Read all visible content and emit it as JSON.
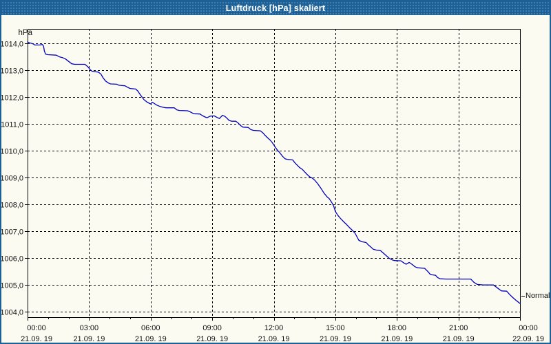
{
  "window": {
    "title": "Luftdruck [hPa] skaliert"
  },
  "colors": {
    "titlebar": "#1d6095",
    "window_border": "#1d6095",
    "background": "#fbfbf2",
    "grid": "#000000",
    "axis": "#000000",
    "line": "#0000bd",
    "label_text": "#111111",
    "title_text": "#ffffff"
  },
  "chart_data": {
    "type": "line",
    "title": "Luftdruck [hPa] skaliert",
    "xlabel": "",
    "ylabel": "hPa",
    "series_end_label": "Normal",
    "grid": "dashed",
    "legend": "none",
    "xlim": [
      0,
      24
    ],
    "ylim": [
      1003.8,
      1014.54
    ],
    "y_ticks": [
      {
        "value": 1014,
        "label": "1014,0"
      },
      {
        "value": 1013,
        "label": "1013,0"
      },
      {
        "value": 1012,
        "label": "1012,0"
      },
      {
        "value": 1011,
        "label": "1011,0"
      },
      {
        "value": 1010,
        "label": "1010,0"
      },
      {
        "value": 1009,
        "label": "1009,0"
      },
      {
        "value": 1008,
        "label": "1008,0"
      },
      {
        "value": 1007,
        "label": "1007,0"
      },
      {
        "value": 1006,
        "label": "1006,0"
      },
      {
        "value": 1005,
        "label": "1005,0"
      },
      {
        "value": 1004,
        "label": "1004,0"
      }
    ],
    "x_ticks": [
      {
        "hours": 0,
        "time": "00:00",
        "date": "21.09. 19"
      },
      {
        "hours": 3,
        "time": "03:00",
        "date": "21.09. 19"
      },
      {
        "hours": 6,
        "time": "06:00",
        "date": "21.09. 19"
      },
      {
        "hours": 9,
        "time": "09:00",
        "date": "21.09. 19"
      },
      {
        "hours": 12,
        "time": "12:00",
        "date": "21.09. 19"
      },
      {
        "hours": 15,
        "time": "15:00",
        "date": "21.09. 19"
      },
      {
        "hours": 18,
        "time": "18:00",
        "date": "21.09. 19"
      },
      {
        "hours": 21,
        "time": "21:00",
        "date": "21.09. 19"
      },
      {
        "hours": 24,
        "time": "00:00",
        "date": "22.09. 19"
      }
    ],
    "minor_x_tick_hours": 1,
    "series": [
      {
        "name": "Luftdruck",
        "unit": "hPa",
        "points": [
          [
            0.0,
            1014.05
          ],
          [
            0.1,
            1014.02
          ],
          [
            0.2,
            1014.0
          ],
          [
            0.3,
            1013.97
          ],
          [
            0.35,
            1013.94
          ],
          [
            0.6,
            1013.94
          ],
          [
            0.72,
            1013.96
          ],
          [
            0.78,
            1013.9
          ],
          [
            0.82,
            1013.72
          ],
          [
            0.88,
            1013.6
          ],
          [
            1.0,
            1013.58
          ],
          [
            1.4,
            1013.56
          ],
          [
            1.55,
            1013.5
          ],
          [
            1.7,
            1013.47
          ],
          [
            1.85,
            1013.42
          ],
          [
            2.0,
            1013.33
          ],
          [
            2.15,
            1013.24
          ],
          [
            2.3,
            1013.22
          ],
          [
            2.8,
            1013.22
          ],
          [
            2.95,
            1013.12
          ],
          [
            3.05,
            1013.02
          ],
          [
            3.15,
            1012.96
          ],
          [
            3.45,
            1012.93
          ],
          [
            3.58,
            1012.85
          ],
          [
            3.68,
            1012.72
          ],
          [
            3.8,
            1012.6
          ],
          [
            3.95,
            1012.52
          ],
          [
            4.05,
            1012.49
          ],
          [
            4.35,
            1012.48
          ],
          [
            4.45,
            1012.44
          ],
          [
            4.75,
            1012.42
          ],
          [
            4.88,
            1012.36
          ],
          [
            5.0,
            1012.32
          ],
          [
            5.27,
            1012.3
          ],
          [
            5.38,
            1012.22
          ],
          [
            5.48,
            1012.1
          ],
          [
            5.58,
            1012.0
          ],
          [
            5.68,
            1011.9
          ],
          [
            5.83,
            1011.81
          ],
          [
            6.0,
            1011.74
          ],
          [
            6.08,
            1011.81
          ],
          [
            6.18,
            1011.76
          ],
          [
            6.3,
            1011.7
          ],
          [
            6.45,
            1011.65
          ],
          [
            6.6,
            1011.62
          ],
          [
            6.75,
            1011.6
          ],
          [
            7.15,
            1011.6
          ],
          [
            7.28,
            1011.52
          ],
          [
            7.4,
            1011.5
          ],
          [
            7.8,
            1011.49
          ],
          [
            7.95,
            1011.44
          ],
          [
            8.1,
            1011.38
          ],
          [
            8.4,
            1011.37
          ],
          [
            8.52,
            1011.31
          ],
          [
            8.65,
            1011.26
          ],
          [
            8.75,
            1011.23
          ],
          [
            8.9,
            1011.29
          ],
          [
            9.1,
            1011.3
          ],
          [
            9.22,
            1011.25
          ],
          [
            9.35,
            1011.2
          ],
          [
            9.5,
            1011.32
          ],
          [
            9.62,
            1011.28
          ],
          [
            9.72,
            1011.21
          ],
          [
            9.82,
            1011.13
          ],
          [
            9.95,
            1011.1
          ],
          [
            10.15,
            1011.1
          ],
          [
            10.28,
            1011.02
          ],
          [
            10.4,
            1010.93
          ],
          [
            10.5,
            1010.88
          ],
          [
            10.75,
            1010.87
          ],
          [
            10.88,
            1010.79
          ],
          [
            11.0,
            1010.76
          ],
          [
            11.35,
            1010.74
          ],
          [
            11.48,
            1010.66
          ],
          [
            11.58,
            1010.57
          ],
          [
            11.7,
            1010.48
          ],
          [
            11.82,
            1010.4
          ],
          [
            11.92,
            1010.31
          ],
          [
            12.0,
            1010.22
          ],
          [
            12.1,
            1010.1
          ],
          [
            12.2,
            1010.0
          ],
          [
            12.32,
            1009.9
          ],
          [
            12.42,
            1009.8
          ],
          [
            12.55,
            1009.7
          ],
          [
            12.65,
            1009.68
          ],
          [
            12.92,
            1009.66
          ],
          [
            13.02,
            1009.56
          ],
          [
            13.12,
            1009.48
          ],
          [
            13.25,
            1009.38
          ],
          [
            13.4,
            1009.3
          ],
          [
            13.52,
            1009.2
          ],
          [
            13.62,
            1009.12
          ],
          [
            13.75,
            1009.03
          ],
          [
            13.88,
            1008.98
          ],
          [
            14.0,
            1008.9
          ],
          [
            14.15,
            1008.76
          ],
          [
            14.3,
            1008.6
          ],
          [
            14.45,
            1008.42
          ],
          [
            14.6,
            1008.28
          ],
          [
            14.7,
            1008.22
          ],
          [
            14.82,
            1008.08
          ],
          [
            14.92,
            1007.94
          ],
          [
            15.0,
            1007.74
          ],
          [
            15.12,
            1007.6
          ],
          [
            15.25,
            1007.48
          ],
          [
            15.4,
            1007.36
          ],
          [
            15.55,
            1007.25
          ],
          [
            15.7,
            1007.13
          ],
          [
            15.85,
            1007.02
          ],
          [
            15.95,
            1006.94
          ],
          [
            16.05,
            1006.8
          ],
          [
            16.15,
            1006.66
          ],
          [
            16.3,
            1006.61
          ],
          [
            16.5,
            1006.58
          ],
          [
            16.6,
            1006.5
          ],
          [
            16.72,
            1006.42
          ],
          [
            16.85,
            1006.33
          ],
          [
            17.0,
            1006.3
          ],
          [
            17.2,
            1006.28
          ],
          [
            17.35,
            1006.18
          ],
          [
            17.5,
            1006.08
          ],
          [
            17.62,
            1006.0
          ],
          [
            17.75,
            1005.94
          ],
          [
            17.88,
            1005.91
          ],
          [
            18.2,
            1005.9
          ],
          [
            18.32,
            1005.83
          ],
          [
            18.45,
            1005.77
          ],
          [
            18.6,
            1005.84
          ],
          [
            18.75,
            1005.76
          ],
          [
            18.88,
            1005.68
          ],
          [
            19.0,
            1005.64
          ],
          [
            19.35,
            1005.62
          ],
          [
            19.5,
            1005.51
          ],
          [
            19.62,
            1005.4
          ],
          [
            19.7,
            1005.38
          ],
          [
            19.88,
            1005.36
          ],
          [
            19.98,
            1005.28
          ],
          [
            20.1,
            1005.23
          ],
          [
            20.4,
            1005.22
          ],
          [
            21.6,
            1005.22
          ],
          [
            21.75,
            1005.1
          ],
          [
            21.92,
            1005.02
          ],
          [
            22.2,
            1005.0
          ],
          [
            22.7,
            1005.0
          ],
          [
            22.85,
            1004.92
          ],
          [
            23.0,
            1004.83
          ],
          [
            23.1,
            1004.78
          ],
          [
            23.35,
            1004.77
          ],
          [
            23.5,
            1004.64
          ],
          [
            23.65,
            1004.53
          ],
          [
            23.8,
            1004.43
          ],
          [
            23.92,
            1004.36
          ],
          [
            24.0,
            1004.31
          ]
        ]
      }
    ]
  }
}
